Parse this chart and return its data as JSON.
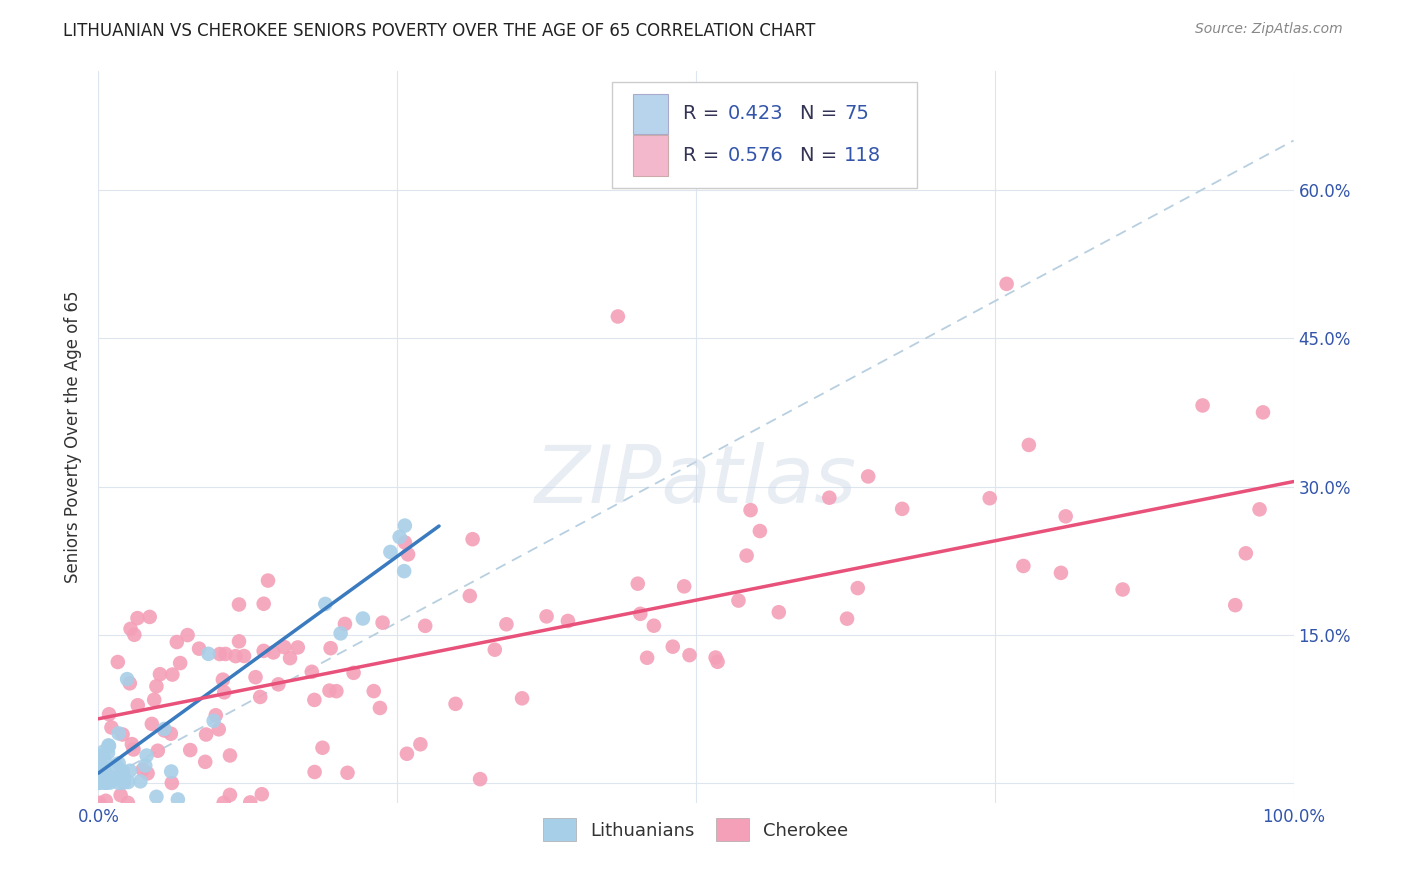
{
  "title": "LITHUANIAN VS CHEROKEE SENIORS POVERTY OVER THE AGE OF 65 CORRELATION CHART",
  "source": "Source: ZipAtlas.com",
  "ylabel": "Seniors Poverty Over the Age of 65",
  "xlim": [
    0,
    1.0
  ],
  "ylim": [
    -0.02,
    0.72
  ],
  "bottom_legend": [
    "Lithuanians",
    "Cherokee"
  ],
  "blue_scatter_color": "#a8cfe8",
  "pink_scatter_color": "#f4a0b8",
  "blue_trend_color": "#3a7abf",
  "pink_trend_color": "#e8517a",
  "dashed_line_color": "#b8cfe0",
  "watermark": "ZIPatlas",
  "grid_color": "#dde5ee",
  "leg_blue_fill": "#b8d4ed",
  "leg_pink_fill": "#f4b8cc",
  "leg_text_color": "#333355",
  "leg_num_color": "#3355aa"
}
